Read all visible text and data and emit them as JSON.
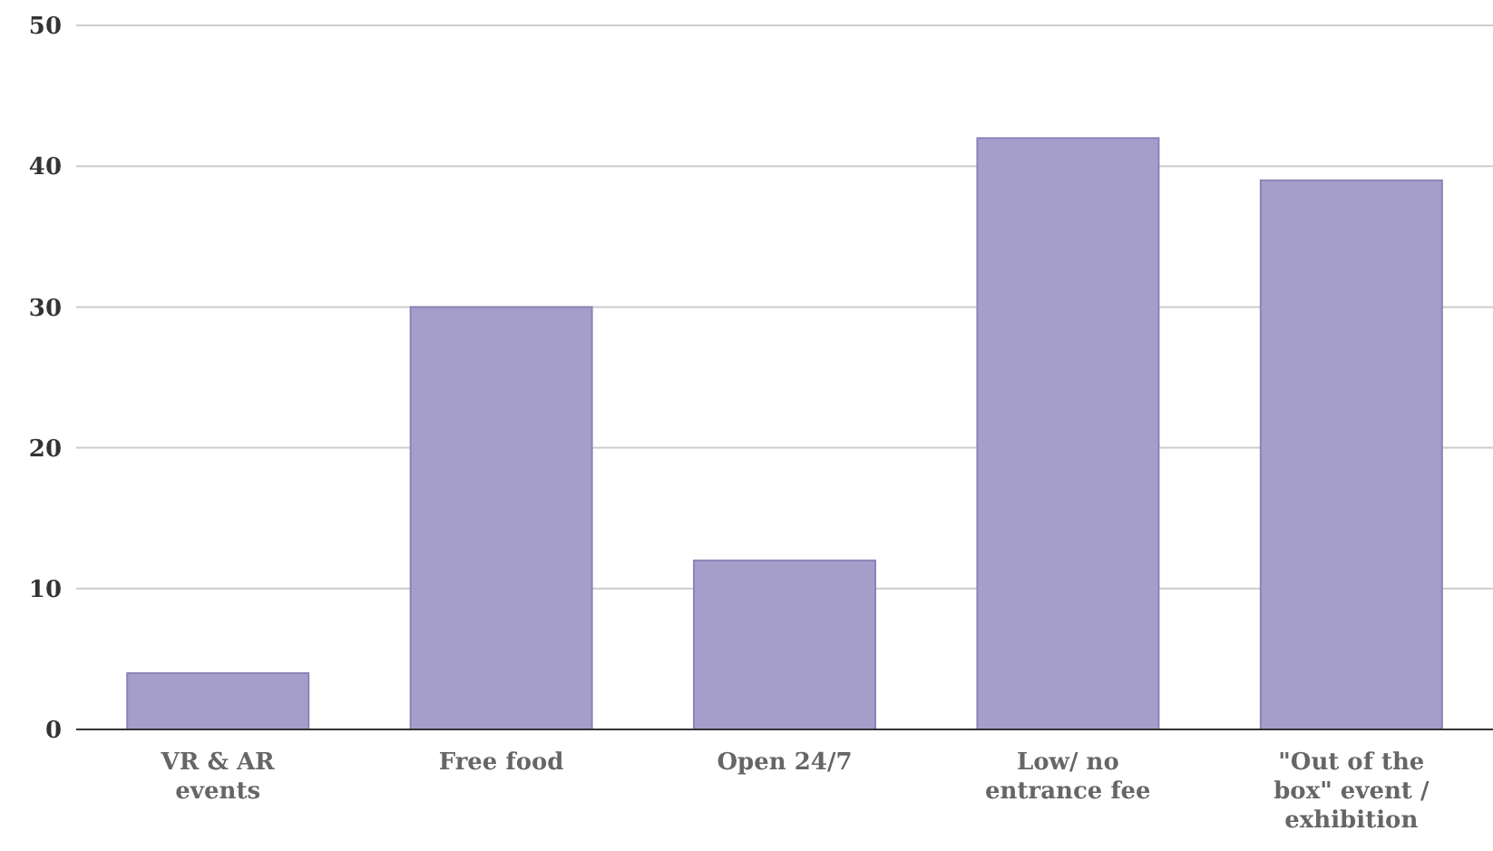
{
  "chart_data": {
    "type": "bar",
    "categories": [
      "VR & AR events",
      "Free food",
      "Open 24/7",
      "Low/ no entrance fee",
      "\"Out of the box\" event / exhibition"
    ],
    "values": [
      4,
      30,
      12,
      42,
      39
    ],
    "color": "#a59ecb",
    "ylim": [
      0,
      50
    ],
    "yticks": [
      0,
      10,
      20,
      30,
      40,
      50
    ],
    "grid": "y",
    "legend": false
  }
}
